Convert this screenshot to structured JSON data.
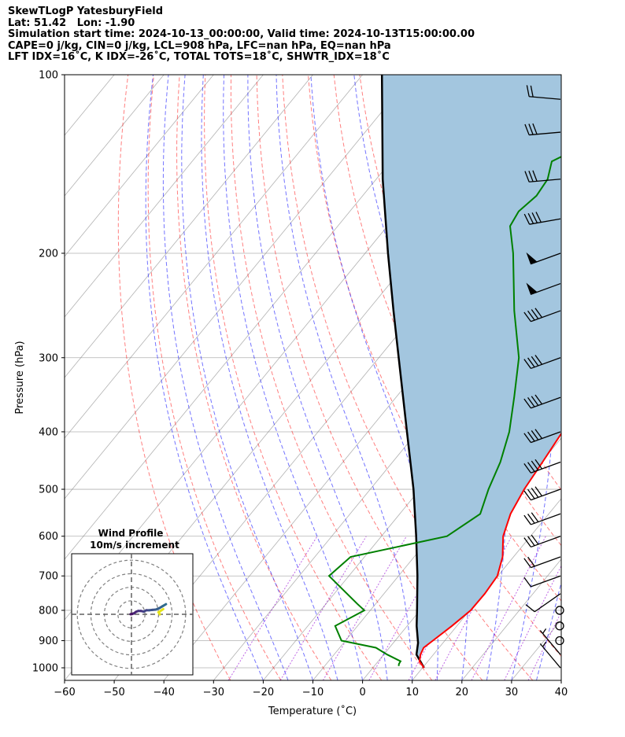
{
  "header": {
    "line1": "SkewTLogP YatesburyField",
    "line2": "Lat: 51.42   Lon: -1.90",
    "line3": "Simulation start time: 2024-10-13_00:00:00, Valid time: 2024-10-13T15:00:00.00",
    "line4": "CAPE=0 j/kg, CIN=0 j/kg, LCL=908 hPa, LFC=nan hPa, EQ=nan hPa",
    "line5": "LFT IDX=16˚C, K IDX=-26˚C, TOTAL TOTS=18˚C, SHWTR_IDX=18˚C"
  },
  "chart_data": {
    "type": "line",
    "title": "",
    "xlabel": "Temperature (˚C)",
    "ylabel": "Pressure (hPa)",
    "xlim": [
      -60,
      40
    ],
    "ylim": [
      1050,
      100
    ],
    "yscale": "log",
    "grid": true,
    "xticks": [
      "−60",
      "−50",
      "−40",
      "−30",
      "−20",
      "−10",
      "0",
      "10",
      "20",
      "30",
      "40"
    ],
    "yticks": [
      "100",
      "200",
      "300",
      "400",
      "500",
      "600",
      "700",
      "800",
      "900",
      "1000"
    ],
    "colors": {
      "temperature": "#ff0000",
      "dewpoint": "#008000",
      "parcel": "#000000",
      "cin_shade": "#a3c6df",
      "dry_adiabat": "#ff0000",
      "moist_adiabat": "#0000ff",
      "isotherm": "#7f7f7f",
      "mixing_ratio": "#9400d3"
    },
    "series": [
      {
        "key": "temperature",
        "points": [
          [
            1000,
            10.3
          ],
          [
            975,
            8.3
          ],
          [
            950,
            7.4
          ],
          [
            925,
            6.9
          ],
          [
            900,
            7.6
          ],
          [
            850,
            9.0
          ],
          [
            800,
            10.2
          ],
          [
            750,
            10.3
          ],
          [
            700,
            9.9
          ],
          [
            650,
            7.8
          ],
          [
            600,
            4.5
          ],
          [
            550,
            2.3
          ],
          [
            500,
            1.0
          ],
          [
            450,
            0.2
          ],
          [
            400,
            -0.8
          ],
          [
            350,
            -2.5
          ],
          [
            300,
            -4.6
          ],
          [
            250,
            -9.2
          ],
          [
            200,
            -16.6
          ],
          [
            180,
            -20.4
          ],
          [
            170,
            -19.5
          ],
          [
            165,
            -18.2
          ],
          [
            160,
            -17.3
          ],
          [
            150,
            -16.4
          ],
          [
            140,
            -16.1
          ],
          [
            130,
            -16.8
          ],
          [
            120,
            -16.9
          ],
          [
            110,
            -17.0
          ],
          [
            100,
            -16.8
          ]
        ]
      },
      {
        "key": "dewpoint",
        "points": [
          [
            993,
            4.9
          ],
          [
            985,
            4.6
          ],
          [
            975,
            4.5
          ],
          [
            950,
            0.7
          ],
          [
            925,
            -2.7
          ],
          [
            900,
            -10.8
          ],
          [
            850,
            -14.5
          ],
          [
            800,
            -11.2
          ],
          [
            780,
            -13.7
          ],
          [
            700,
            -24.0
          ],
          [
            650,
            -22.8
          ],
          [
            600,
            -6.8
          ],
          [
            550,
            -3.8
          ],
          [
            500,
            -6.2
          ],
          [
            450,
            -8.3
          ],
          [
            400,
            -11.5
          ],
          [
            350,
            -16.2
          ],
          [
            300,
            -21.8
          ],
          [
            250,
            -30.5
          ],
          [
            200,
            -40.2
          ],
          [
            180,
            -45.3
          ],
          [
            170,
            -46.0
          ],
          [
            160,
            -45.0
          ],
          [
            150,
            -45.5
          ],
          [
            140,
            -47.6
          ],
          [
            130,
            -43.0
          ],
          [
            120,
            -41.6
          ],
          [
            110,
            -40.1
          ],
          [
            100,
            -38.6
          ]
        ]
      },
      {
        "key": "parcel",
        "points": [
          [
            1000,
            10.3
          ],
          [
            950,
            6.6
          ],
          [
            908,
            5.0
          ],
          [
            850,
            1.9
          ],
          [
            800,
            -0.6
          ],
          [
            700,
            -6.2
          ],
          [
            600,
            -13.0
          ],
          [
            500,
            -21.3
          ],
          [
            400,
            -32.1
          ],
          [
            300,
            -46.0
          ],
          [
            250,
            -54.8
          ],
          [
            200,
            -65.4
          ],
          [
            150,
            -78.7
          ],
          [
            100,
            -96.1
          ]
        ]
      }
    ],
    "wind_barbs": [
      {
        "p": 1000,
        "speed_kt": 5,
        "dir": 320
      },
      {
        "p": 950,
        "speed_kt": 5,
        "dir": 320
      },
      {
        "p": 900,
        "speed_kt": 0,
        "dir": 0
      },
      {
        "p": 850,
        "speed_kt": 0,
        "dir": 0
      },
      {
        "p": 800,
        "speed_kt": 0,
        "dir": 0
      },
      {
        "p": 750,
        "speed_kt": 10,
        "dir": 235
      },
      {
        "p": 700,
        "speed_kt": 10,
        "dir": 250
      },
      {
        "p": 650,
        "speed_kt": 20,
        "dir": 250
      },
      {
        "p": 600,
        "speed_kt": 30,
        "dir": 250
      },
      {
        "p": 550,
        "speed_kt": 30,
        "dir": 250
      },
      {
        "p": 500,
        "speed_kt": 40,
        "dir": 250
      },
      {
        "p": 450,
        "speed_kt": 40,
        "dir": 250
      },
      {
        "p": 400,
        "speed_kt": 40,
        "dir": 250
      },
      {
        "p": 350,
        "speed_kt": 40,
        "dir": 250
      },
      {
        "p": 300,
        "speed_kt": 40,
        "dir": 250
      },
      {
        "p": 250,
        "speed_kt": 40,
        "dir": 250
      },
      {
        "p": 225,
        "speed_kt": 50,
        "dir": 250
      },
      {
        "p": 200,
        "speed_kt": 50,
        "dir": 250
      },
      {
        "p": 175,
        "speed_kt": 40,
        "dir": 260
      },
      {
        "p": 150,
        "speed_kt": 30,
        "dir": 265
      },
      {
        "p": 125,
        "speed_kt": 30,
        "dir": 265
      },
      {
        "p": 110,
        "speed_kt": 20,
        "dir": 275
      }
    ],
    "hodograph": {
      "title": "Wind Profile",
      "subtitle": "10m/s increment",
      "ring_step_ms": 10,
      "points": [
        [
          1.0,
          0.5
        ],
        [
          0.0,
          0.2
        ],
        [
          -0.6,
          0.1
        ],
        [
          0.3,
          0.2
        ],
        [
          1.8,
          0.7
        ],
        [
          3.3,
          1.8
        ],
        [
          5.0,
          2.5
        ],
        [
          7.0,
          2.5
        ],
        [
          9.0,
          2.0
        ],
        [
          11.0,
          3.0
        ],
        [
          13.0,
          3.0
        ],
        [
          15.5,
          3.3
        ],
        [
          18.0,
          3.5
        ],
        [
          20.5,
          4.5
        ],
        [
          23.0,
          6.0
        ],
        [
          25.5,
          7.5
        ]
      ],
      "tail": [
        [
          20.0,
          1.5
        ],
        [
          21.0,
          -0.1
        ]
      ]
    }
  }
}
